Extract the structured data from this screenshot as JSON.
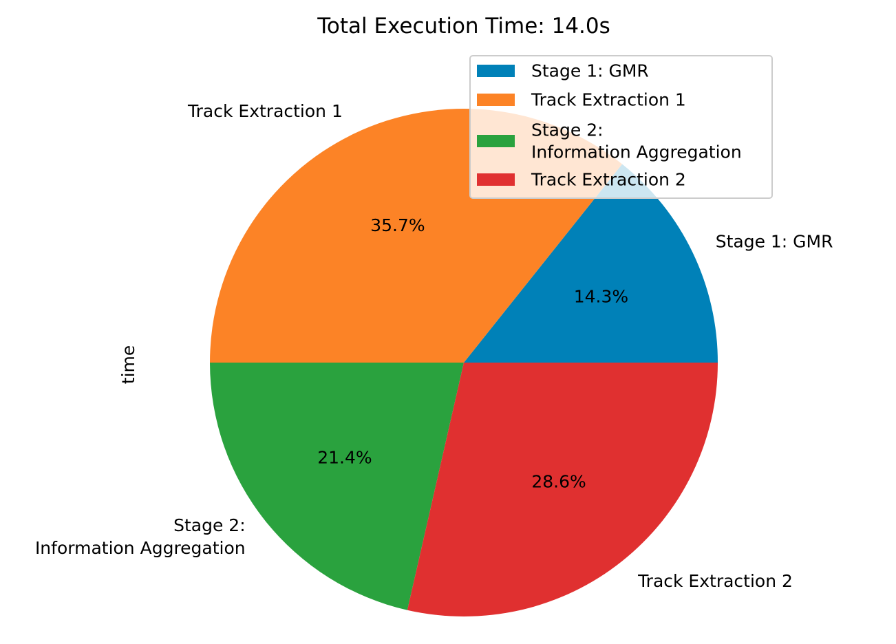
{
  "chart_data": {
    "type": "pie",
    "title": "Total Execution Time: 14.0s",
    "ylabel": "time",
    "categories": [
      "Stage 1: GMR",
      "Track Extraction 1",
      "Stage 2:\nInformation Aggregation",
      "Track Extraction 2"
    ],
    "values": [
      2.0,
      5.0,
      3.0,
      4.0
    ],
    "percent_labels": [
      "14.3%",
      "35.7%",
      "21.4%",
      "28.6%"
    ],
    "colors": [
      "#0081b8",
      "#fc8326",
      "#2aa23e",
      "#e03030"
    ],
    "legend": {
      "placement": "top-right",
      "entries": [
        "Stage 1: GMR",
        "Track Extraction 1",
        "Stage 2:\nInformation Aggregation",
        "Track Extraction 2"
      ]
    }
  }
}
